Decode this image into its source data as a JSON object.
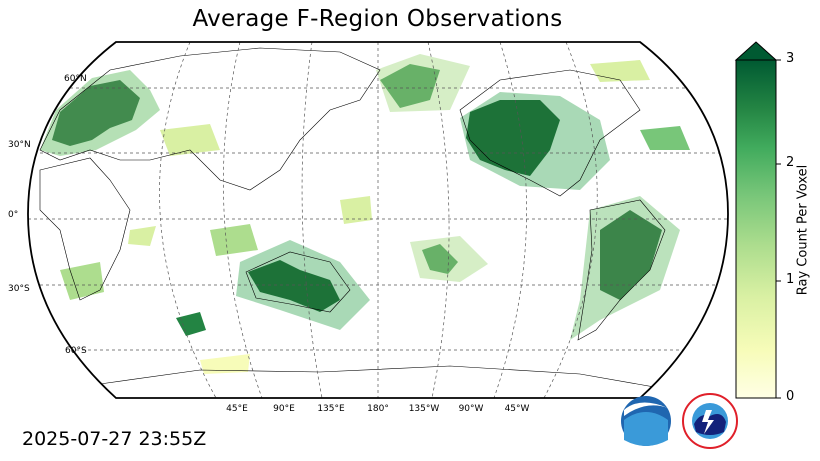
{
  "title": "Average F-Region Observations",
  "timestamp": "2025-07-27 23:55Z",
  "lat_labels": [
    "60°N",
    "30°N",
    "0°",
    "30°S",
    "60°S"
  ],
  "lon_labels": [
    "45°E",
    "90°E",
    "135°E",
    "180°",
    "135°W",
    "90°W",
    "45°W"
  ],
  "projection": "Robinson, centered on 180°",
  "grid": true,
  "colorbar": {
    "label": "Ray Count Per Voxel",
    "ticks": [
      "0",
      "1",
      "2",
      "3"
    ],
    "min": 0,
    "max": 3,
    "extend": "max",
    "colormap": "YlGn",
    "color_low": "#ffffe5",
    "color_high": "#004529"
  },
  "logos": {
    "noaa": {
      "text": "NOAA",
      "color": "#1a5fa8",
      "icon": "noaa-logo"
    },
    "nws": {
      "text": "NATIONAL WEATHER SERVICE",
      "color": "#e0202a",
      "icon": "nws-logo"
    }
  }
}
